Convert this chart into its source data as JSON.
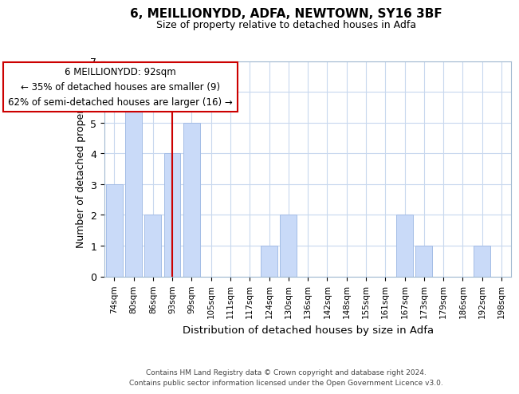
{
  "title": "6, MEILLIONYDD, ADFA, NEWTOWN, SY16 3BF",
  "subtitle": "Size of property relative to detached houses in Adfa",
  "xlabel": "Distribution of detached houses by size in Adfa",
  "ylabel": "Number of detached properties",
  "bar_labels": [
    "74sqm",
    "80sqm",
    "86sqm",
    "93sqm",
    "99sqm",
    "105sqm",
    "111sqm",
    "117sqm",
    "124sqm",
    "130sqm",
    "136sqm",
    "142sqm",
    "148sqm",
    "155sqm",
    "161sqm",
    "167sqm",
    "173sqm",
    "179sqm",
    "186sqm",
    "192sqm",
    "198sqm"
  ],
  "bar_values": [
    3,
    6,
    2,
    4,
    5,
    0,
    0,
    0,
    1,
    2,
    0,
    0,
    0,
    0,
    0,
    2,
    1,
    0,
    0,
    1,
    0
  ],
  "bar_color": "#c9daf8",
  "bar_edge_color": "#a4bde6",
  "subject_bar_index": 3,
  "subject_line_color": "#cc0000",
  "ylim": [
    0,
    7
  ],
  "yticks": [
    0,
    1,
    2,
    3,
    4,
    5,
    6,
    7
  ],
  "annotation_title": "6 MEILLIONYDD: 92sqm",
  "annotation_line1": "← 35% of detached houses are smaller (9)",
  "annotation_line2": "62% of semi-detached houses are larger (16) →",
  "annotation_box_color": "#ffffff",
  "annotation_box_edge": "#cc0000",
  "footer_line1": "Contains HM Land Registry data © Crown copyright and database right 2024.",
  "footer_line2": "Contains public sector information licensed under the Open Government Licence v3.0.",
  "background_color": "#ffffff",
  "grid_color": "#c8d8ee"
}
